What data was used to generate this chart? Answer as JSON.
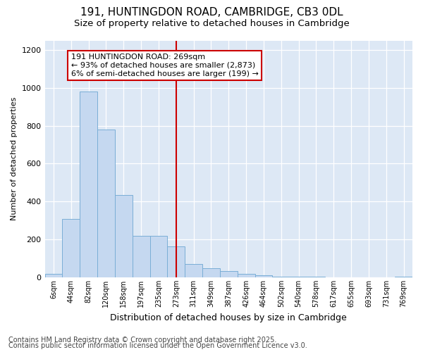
{
  "title": "191, HUNTINGDON ROAD, CAMBRIDGE, CB3 0DL",
  "subtitle": "Size of property relative to detached houses in Cambridge",
  "xlabel": "Distribution of detached houses by size in Cambridge",
  "ylabel": "Number of detached properties",
  "categories": [
    "6sqm",
    "44sqm",
    "82sqm",
    "120sqm",
    "158sqm",
    "197sqm",
    "235sqm",
    "273sqm",
    "311sqm",
    "349sqm",
    "387sqm",
    "426sqm",
    "464sqm",
    "502sqm",
    "540sqm",
    "578sqm",
    "617sqm",
    "655sqm",
    "693sqm",
    "731sqm",
    "769sqm"
  ],
  "bar_heights": [
    20,
    310,
    980,
    780,
    435,
    218,
    218,
    165,
    72,
    48,
    35,
    20,
    12,
    5,
    3,
    2,
    0,
    0,
    0,
    0,
    5
  ],
  "bar_color": "#c5d8f0",
  "bar_edge_color": "#7aaed6",
  "vline_x": 7,
  "vline_color": "#cc0000",
  "annotation_text": "191 HUNTINGDON ROAD: 269sqm\n← 93% of detached houses are smaller (2,873)\n6% of semi-detached houses are larger (199) →",
  "ylim": [
    0,
    1250
  ],
  "yticks": [
    0,
    200,
    400,
    600,
    800,
    1000,
    1200
  ],
  "footer_line1": "Contains HM Land Registry data © Crown copyright and database right 2025.",
  "footer_line2": "Contains public sector information licensed under the Open Government Licence v3.0.",
  "bg_color": "#ffffff",
  "plot_bg_color": "#dde8f5",
  "title_fontsize": 11,
  "subtitle_fontsize": 9.5,
  "annotation_fontsize": 8,
  "footer_fontsize": 7,
  "ylabel_fontsize": 8,
  "xlabel_fontsize": 9
}
